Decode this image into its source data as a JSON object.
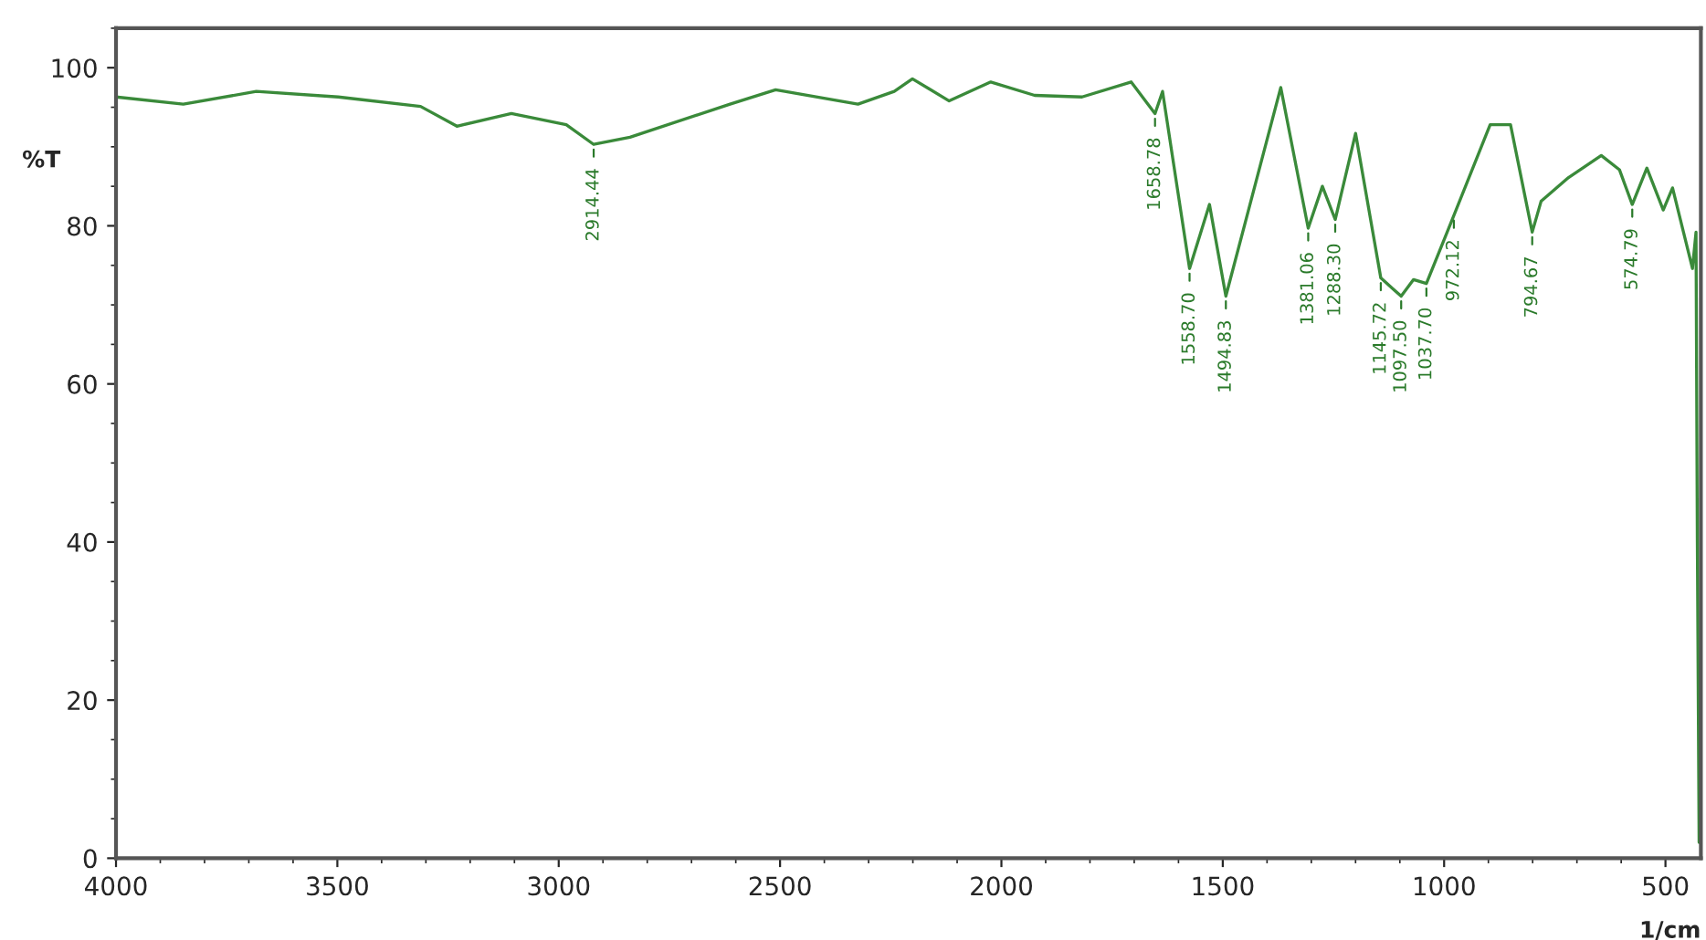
{
  "chart_data": {
    "type": "line",
    "ylabel": "%T",
    "xlabel": "1/cm",
    "xlim": [
      4000,
      420
    ],
    "ylim": [
      0,
      105
    ],
    "xticks": [
      4000,
      3500,
      3000,
      2500,
      2000,
      1500,
      1000,
      500
    ],
    "yticks": [
      0,
      20,
      40,
      60,
      80,
      100
    ],
    "grid": false,
    "legend": false,
    "marker": "none",
    "line_style": "solid",
    "series": [
      {
        "color": "#3a8a3a",
        "x": [
          4000,
          3848,
          3683,
          3498,
          3312,
          3230,
          3107,
          2983,
          2921,
          2839,
          2613,
          2510,
          2324,
          2242,
          2201,
          2118,
          2024,
          1925,
          1818,
          1707,
          1653,
          1636,
          1575,
          1530,
          1493,
          1369,
          1307,
          1275,
          1246,
          1200,
          1143,
          1097,
          1069,
          1040,
          978,
          896,
          850,
          801,
          781,
          719,
          645,
          604,
          575,
          542,
          505,
          484,
          439,
          431,
          428,
          424
        ],
        "values": [
          96.3,
          95.4,
          97,
          96.3,
          95.1,
          92.6,
          94.2,
          92.8,
          90.3,
          91.2,
          95.4,
          97.2,
          95.4,
          97,
          98.6,
          95.8,
          98.2,
          96.5,
          96.3,
          98.2,
          94.2,
          97,
          74.6,
          82.7,
          71.1,
          97.5,
          79.7,
          85,
          80.8,
          91.7,
          73.4,
          71.1,
          73.2,
          72.7,
          81.3,
          92.8,
          92.8,
          79.2,
          83.1,
          86.1,
          88.9,
          87.1,
          82.7,
          87.3,
          82,
          84.8,
          74.6,
          79.2,
          40,
          2
        ]
      }
    ],
    "annotations": [
      {
        "text": "2914.44",
        "x": 2921,
        "y": 90.3
      },
      {
        "text": "1658.78",
        "x": 1653,
        "y": 94.2
      },
      {
        "text": "1558.70",
        "x": 1575,
        "y": 74.6
      },
      {
        "text": "1494.83",
        "x": 1493,
        "y": 71.1
      },
      {
        "text": "1381.06",
        "x": 1307,
        "y": 79.7
      },
      {
        "text": "1288.30",
        "x": 1246,
        "y": 80.8
      },
      {
        "text": "1145.72",
        "x": 1143,
        "y": 73.4
      },
      {
        "text": "1097.50",
        "x": 1097,
        "y": 71.1
      },
      {
        "text": "1037.70",
        "x": 1040,
        "y": 72.7
      },
      {
        "text": "972.12",
        "x": 978,
        "y": 81.3
      },
      {
        "text": "794.67",
        "x": 801,
        "y": 79.2
      },
      {
        "text": "574.79",
        "x": 575,
        "y": 82.7
      }
    ]
  }
}
